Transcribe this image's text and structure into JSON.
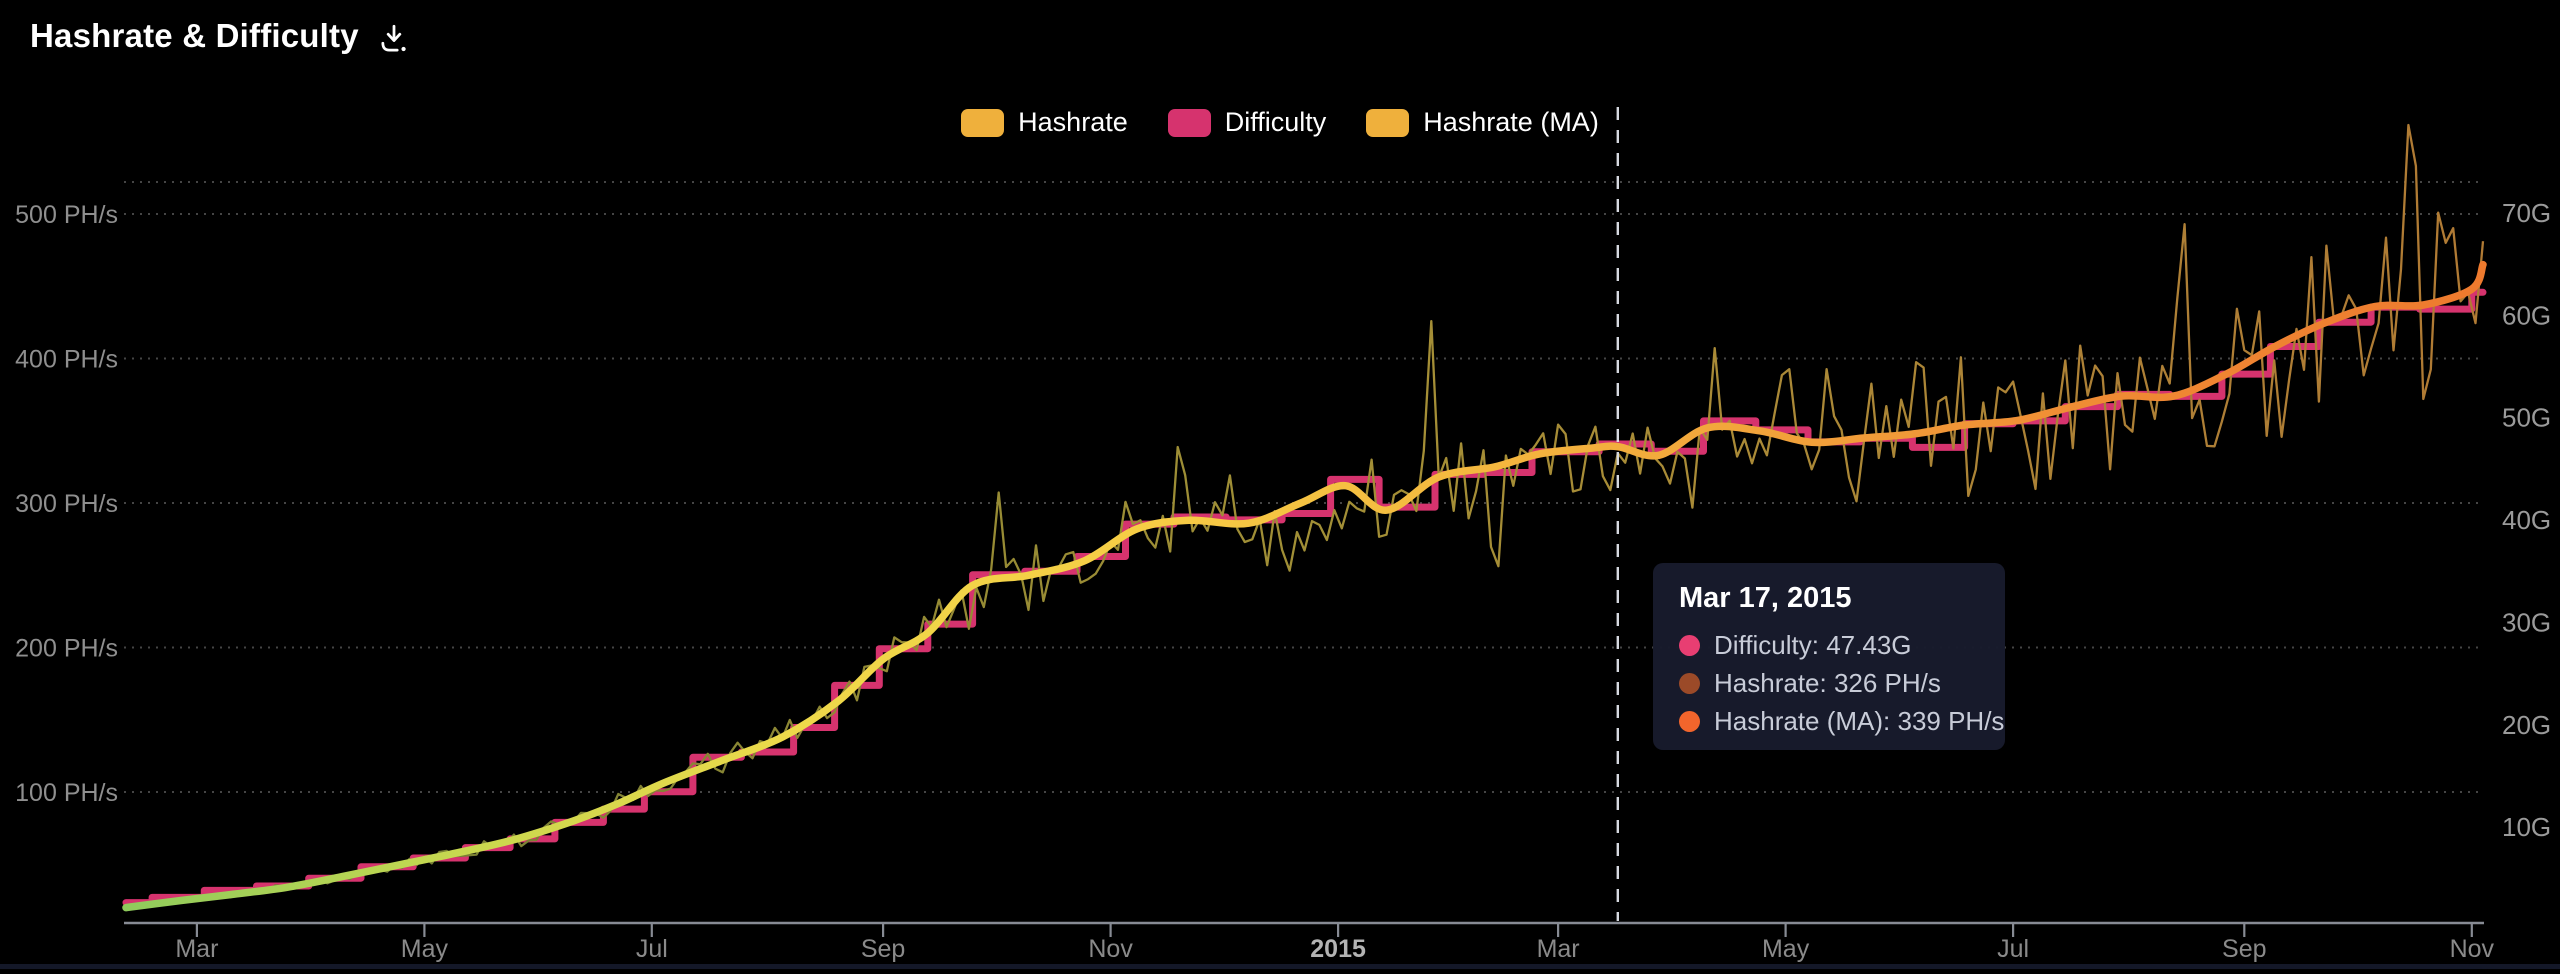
{
  "page": {
    "title": "Hashrate & Difficulty",
    "background": "#000000"
  },
  "legend": {
    "items": [
      {
        "label": "Hashrate",
        "color": "#efb03c"
      },
      {
        "label": "Difficulty",
        "color": "#d6336e"
      },
      {
        "label": "Hashrate (MA)",
        "color": "#efb03c"
      }
    ]
  },
  "tooltip": {
    "date": "Mar 17, 2015",
    "rows": [
      {
        "label": "Difficulty",
        "value": "47.43G",
        "text": "Difficulty: 47.43G",
        "color": "#e83e72"
      },
      {
        "label": "Hashrate",
        "value": "326 PH/s",
        "text": "Hashrate: 326 PH/s",
        "color": "#9b4a28"
      },
      {
        "label": "Hashrate (MA)",
        "value": "339 PH/s",
        "text": "Hashrate (MA): 339 PH/s",
        "color": "#f2652c"
      }
    ]
  },
  "chart_data": {
    "type": "line",
    "title": "Hashrate & Difficulty",
    "x_range": [
      "2014-02-10",
      "2015-11-04"
    ],
    "grid": {
      "dotted": true,
      "color": "#454545"
    },
    "crosshair": {
      "date": "2015-03-17",
      "style": "dashed-white"
    },
    "left_axis": {
      "label": "hashrate",
      "unit": "PH/s",
      "ticks": [
        {
          "label": "500 PH/s",
          "value": 500
        },
        {
          "label": "400 PH/s",
          "value": 400
        },
        {
          "label": "300 PH/s",
          "value": 300
        },
        {
          "label": "200 PH/s",
          "value": 200
        },
        {
          "label": "100 PH/s",
          "value": 100
        }
      ]
    },
    "right_axis": {
      "label": "difficulty",
      "unit": "G",
      "ticks": [
        {
          "label": "70G",
          "value": 70
        },
        {
          "label": "60G",
          "value": 60
        },
        {
          "label": "50G",
          "value": 50
        },
        {
          "label": "40G",
          "value": 40
        },
        {
          "label": "30G",
          "value": 30
        },
        {
          "label": "20G",
          "value": 20
        },
        {
          "label": "10G",
          "value": 10
        }
      ]
    },
    "bottom_axis": {
      "ticks": [
        {
          "label": "Mar",
          "date": "2014-03-01",
          "bold": false
        },
        {
          "label": "May",
          "date": "2014-05-01",
          "bold": false
        },
        {
          "label": "Jul",
          "date": "2014-07-01",
          "bold": false
        },
        {
          "label": "Sep",
          "date": "2014-09-01",
          "bold": false
        },
        {
          "label": "Nov",
          "date": "2014-11-01",
          "bold": false
        },
        {
          "label": "2015",
          "date": "2015-01-01",
          "bold": true
        },
        {
          "label": "Mar",
          "date": "2015-03-01",
          "bold": false
        },
        {
          "label": "May",
          "date": "2015-05-01",
          "bold": false
        },
        {
          "label": "Jul",
          "date": "2015-07-01",
          "bold": false
        },
        {
          "label": "Sep",
          "date": "2015-09-01",
          "bold": false
        },
        {
          "label": "Nov",
          "date": "2015-11-01",
          "bold": false
        }
      ]
    },
    "series": [
      {
        "name": "Difficulty",
        "type": "step",
        "unit": "G",
        "color": "#d6336e",
        "points": [
          [
            "2014-02-10",
            2.62
          ],
          [
            "2014-02-17",
            3.13
          ],
          [
            "2014-03-03",
            3.82
          ],
          [
            "2014-03-17",
            4.25
          ],
          [
            "2014-03-31",
            5.01
          ],
          [
            "2014-04-14",
            6.12
          ],
          [
            "2014-04-28",
            6.98
          ],
          [
            "2014-05-12",
            8.0
          ],
          [
            "2014-05-24",
            8.85
          ],
          [
            "2014-06-05",
            10.46
          ],
          [
            "2014-06-18",
            11.76
          ],
          [
            "2014-06-29",
            13.46
          ],
          [
            "2014-07-12",
            16.82
          ],
          [
            "2014-07-25",
            17.34
          ],
          [
            "2014-08-08",
            19.73
          ],
          [
            "2014-08-19",
            23.84
          ],
          [
            "2014-08-31",
            27.43
          ],
          [
            "2014-09-13",
            29.83
          ],
          [
            "2014-09-25",
            34.66
          ],
          [
            "2014-10-09",
            35.0
          ],
          [
            "2014-10-23",
            36.44
          ],
          [
            "2014-11-05",
            39.6
          ],
          [
            "2014-11-18",
            40.3
          ],
          [
            "2014-12-02",
            40.01
          ],
          [
            "2014-12-17",
            40.64
          ],
          [
            "2014-12-30",
            43.97
          ],
          [
            "2015-01-12",
            41.27
          ],
          [
            "2015-01-27",
            44.46
          ],
          [
            "2015-02-09",
            44.65
          ],
          [
            "2015-02-22",
            46.68
          ],
          [
            "2015-03-12",
            47.43
          ],
          [
            "2015-03-26",
            46.72
          ],
          [
            "2015-04-09",
            49.69
          ],
          [
            "2015-04-23",
            48.81
          ],
          [
            "2015-05-07",
            47.64
          ],
          [
            "2015-05-21",
            48.0
          ],
          [
            "2015-06-04",
            47.1
          ],
          [
            "2015-06-18",
            49.4
          ],
          [
            "2015-07-01",
            49.69
          ],
          [
            "2015-07-15",
            51.08
          ],
          [
            "2015-07-29",
            52.28
          ],
          [
            "2015-08-12",
            52.08
          ],
          [
            "2015-08-26",
            54.26
          ],
          [
            "2015-09-08",
            56.96
          ],
          [
            "2015-09-21",
            59.33
          ],
          [
            "2015-10-05",
            60.81
          ],
          [
            "2015-10-18",
            60.61
          ],
          [
            "2015-11-01",
            62.25
          ]
        ]
      },
      {
        "name": "Hashrate (MA)",
        "type": "smooth",
        "unit": "PH/s",
        "gradient": [
          "#8fcb5c",
          "#c8d84f",
          "#eed94a",
          "#f6cd45",
          "#f4b83f",
          "#f1a03a",
          "#ef8833",
          "#ee7a2e"
        ],
        "points": [
          [
            "2014-02-10",
            20
          ],
          [
            "2014-02-25",
            25
          ],
          [
            "2014-03-10",
            29
          ],
          [
            "2014-03-25",
            34
          ],
          [
            "2014-04-10",
            42
          ],
          [
            "2014-04-25",
            50
          ],
          [
            "2014-05-10",
            58
          ],
          [
            "2014-05-25",
            67
          ],
          [
            "2014-06-10",
            80
          ],
          [
            "2014-06-22",
            92
          ],
          [
            "2014-07-04",
            106
          ],
          [
            "2014-07-20",
            122
          ],
          [
            "2014-08-05",
            138
          ],
          [
            "2014-08-20",
            163
          ],
          [
            "2014-09-01",
            192
          ],
          [
            "2014-09-13",
            210
          ],
          [
            "2014-09-25",
            243
          ],
          [
            "2014-10-10",
            250
          ],
          [
            "2014-10-25",
            260
          ],
          [
            "2014-11-08",
            282
          ],
          [
            "2014-11-22",
            288
          ],
          [
            "2014-12-08",
            286
          ],
          [
            "2014-12-22",
            300
          ],
          [
            "2015-01-03",
            312
          ],
          [
            "2015-01-14",
            295
          ],
          [
            "2015-01-28",
            318
          ],
          [
            "2015-02-12",
            325
          ],
          [
            "2015-02-24",
            334
          ],
          [
            "2015-03-10",
            338
          ],
          [
            "2015-03-17",
            339
          ],
          [
            "2015-03-28",
            333
          ],
          [
            "2015-04-10",
            352
          ],
          [
            "2015-04-24",
            350
          ],
          [
            "2015-05-08",
            342
          ],
          [
            "2015-05-22",
            345
          ],
          [
            "2015-06-05",
            348
          ],
          [
            "2015-06-18",
            354
          ],
          [
            "2015-07-02",
            357
          ],
          [
            "2015-07-16",
            366
          ],
          [
            "2015-07-30",
            374
          ],
          [
            "2015-08-13",
            374
          ],
          [
            "2015-08-27",
            389
          ],
          [
            "2015-09-09",
            408
          ],
          [
            "2015-09-22",
            424
          ],
          [
            "2015-10-06",
            436
          ],
          [
            "2015-10-19",
            437
          ],
          [
            "2015-11-01",
            448
          ],
          [
            "2015-11-04",
            465
          ]
        ]
      },
      {
        "name": "Hashrate",
        "type": "noisy-line",
        "unit": "PH/s",
        "gradient": [
          "#6a7b35",
          "#7c8134",
          "#948a34",
          "#a18f36",
          "#a98b37",
          "#ad8136",
          "#b07a34"
        ],
        "derived_from": "Hashrate (MA)",
        "noise_rel_amplitude": [
          0.055,
          0.12
        ],
        "spikes": [
          [
            "2014-10-02",
            0.18
          ],
          [
            "2014-11-20",
            0.15
          ],
          [
            "2014-12-18",
            -0.2
          ],
          [
            "2015-01-26",
            0.4
          ],
          [
            "2015-02-12",
            -0.24
          ],
          [
            "2015-03-20",
            -0.1
          ],
          [
            "2015-04-12",
            0.22
          ],
          [
            "2015-06-20",
            -0.22
          ],
          [
            "2015-08-15",
            0.25
          ],
          [
            "2015-09-12",
            -0.24
          ],
          [
            "2015-10-16",
            0.3
          ],
          [
            "2015-10-27",
            0.2
          ],
          [
            "2015-11-03",
            0.12
          ]
        ]
      }
    ]
  }
}
